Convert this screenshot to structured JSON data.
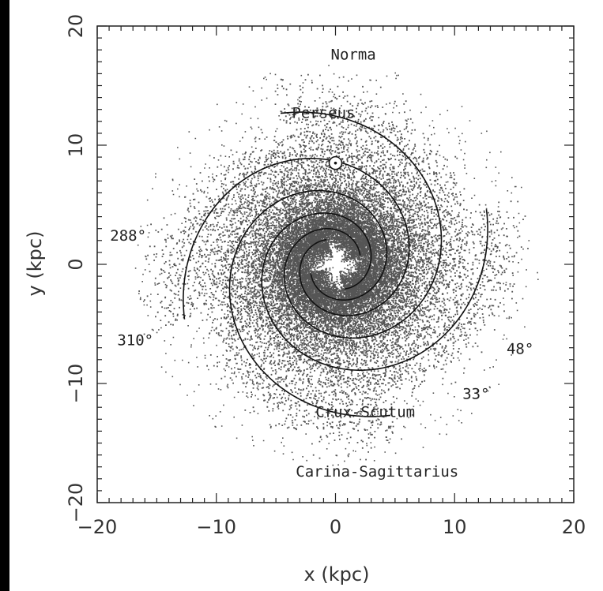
{
  "chart_data": {
    "type": "scatter",
    "title": "",
    "xlabel": "x (kpc)",
    "ylabel": "y (kpc)",
    "xlim": [
      -20,
      20
    ],
    "ylim": [
      -20,
      20
    ],
    "xticks": [
      -20,
      -10,
      0,
      10,
      20
    ],
    "yticks": [
      -20,
      -10,
      0,
      10,
      20
    ],
    "grid": false,
    "colors": {
      "dots": "#555555",
      "arms": "#111111",
      "frame": "#222222",
      "background": "#ffffff"
    },
    "sun_marker": {
      "x": 0,
      "y": 8.5
    },
    "arm_spiral_model": {
      "r0_kpc": 2.2,
      "pitch_deg": 13,
      "theta_start_deg": [
        20,
        110,
        200,
        290
      ],
      "theta_end_deg": [
        470,
        560,
        650,
        740
      ]
    },
    "arm_labels": [
      {
        "text": "Norma",
        "x": 1.5,
        "y": 17.2
      },
      {
        "text": "Perseus",
        "x": -1.0,
        "y": 12.3
      },
      {
        "text": "Crux-Scutum",
        "x": 2.5,
        "y": -12.8
      },
      {
        "text": "Carina-Sagittarius",
        "x": 3.5,
        "y": -17.8
      }
    ],
    "longitude_labels": [
      {
        "text": "288°",
        "x": -17.4,
        "y": 2.0
      },
      {
        "text": "310°",
        "x": -16.8,
        "y": -6.8
      },
      {
        "text": "48°",
        "x": 15.5,
        "y": -7.5
      },
      {
        "text": "33°",
        "x": 11.8,
        "y": -11.3
      }
    ]
  }
}
